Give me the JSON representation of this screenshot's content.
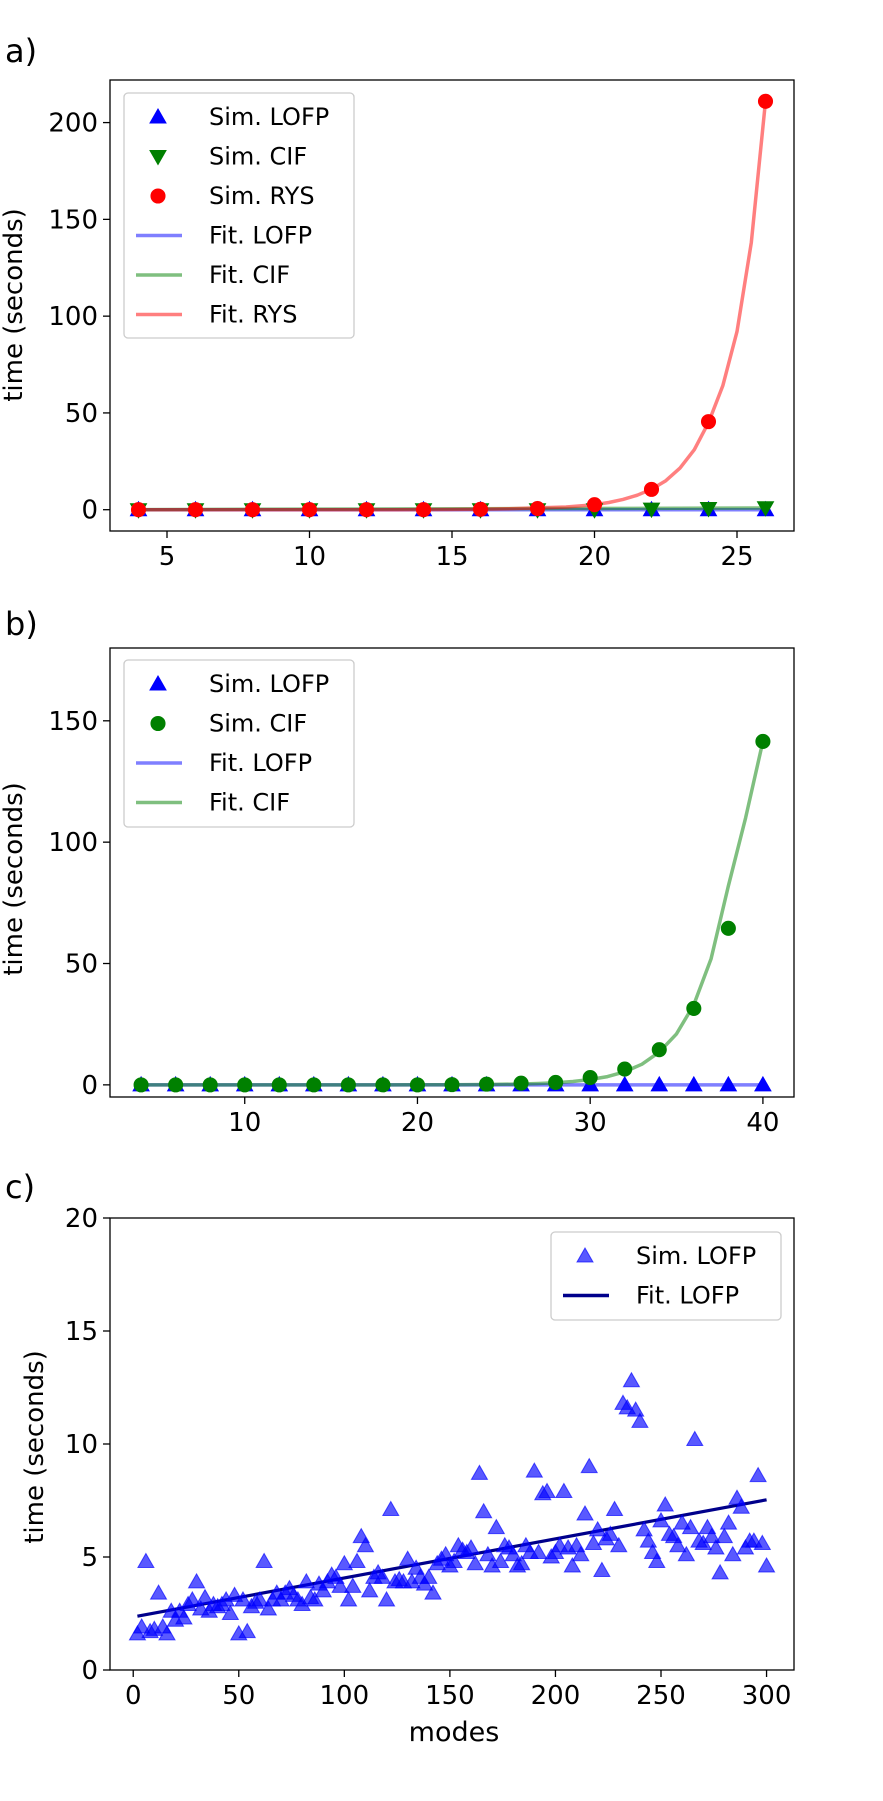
{
  "chart_data": [
    {
      "type": "scatter",
      "panel_label": "a)",
      "xlabel": "",
      "ylabel": "time (seconds)",
      "xlim": [
        3.0,
        27.0
      ],
      "ylim": [
        -11,
        222
      ],
      "xticks": [
        5,
        10,
        15,
        20,
        25
      ],
      "yticks": [
        0,
        50,
        100,
        150,
        200
      ],
      "legend_position": "top-left",
      "series": [
        {
          "name": "Sim. LOFP",
          "kind": "markers",
          "marker": "triangle-up",
          "color": "#0000ff",
          "x": [
            4,
            6,
            8,
            10,
            12,
            14,
            16,
            18,
            20,
            22,
            24,
            26
          ],
          "y": [
            0,
            0,
            0,
            0,
            0,
            0,
            0,
            0,
            0,
            0,
            0,
            0
          ]
        },
        {
          "name": "Sim. CIF",
          "kind": "markers",
          "marker": "triangle-down",
          "color": "#008000",
          "x": [
            4,
            6,
            8,
            10,
            12,
            14,
            16,
            18,
            20,
            22,
            24,
            26
          ],
          "y": [
            0,
            0,
            0,
            0,
            0,
            0,
            0,
            0,
            0,
            0.3,
            0.6,
            1.0
          ]
        },
        {
          "name": "Sim. RYS",
          "kind": "markers",
          "marker": "circle",
          "color": "#ff0000",
          "x": [
            4,
            6,
            8,
            10,
            12,
            14,
            16,
            18,
            20,
            22,
            24,
            26
          ],
          "y": [
            0,
            0,
            0,
            0,
            0,
            0,
            0.2,
            0.6,
            2.6,
            10.5,
            45.5,
            211
          ]
        },
        {
          "name": "Fit. LOFP",
          "kind": "line",
          "color": "#0000ff",
          "opacity": 0.5,
          "x": [
            4,
            26
          ],
          "y": [
            0,
            0
          ]
        },
        {
          "name": "Fit. CIF",
          "kind": "line",
          "color": "#008000",
          "opacity": 0.5,
          "x": [
            4,
            26
          ],
          "y": [
            0.05,
            0.9
          ]
        },
        {
          "name": "Fit. RYS",
          "kind": "line",
          "color": "#ff0000",
          "opacity": 0.5,
          "x": [
            4,
            5,
            6,
            7,
            8,
            9,
            10,
            11,
            12,
            13,
            14,
            15,
            16,
            17,
            18,
            19,
            20,
            20.5,
            21,
            21.5,
            22,
            22.5,
            23,
            23.5,
            24,
            24.5,
            25,
            25.5,
            26
          ],
          "y": [
            0,
            0,
            0,
            0,
            0,
            0,
            0,
            0,
            0,
            0.03,
            0.06,
            0.12,
            0.23,
            0.48,
            0.95,
            1.4,
            2.6,
            3.7,
            5.3,
            7.5,
            10.6,
            15.0,
            21.5,
            31.0,
            45.0,
            64.0,
            92.0,
            138,
            211
          ]
        }
      ]
    },
    {
      "type": "scatter",
      "panel_label": "b)",
      "xlabel": "",
      "ylabel": "time (seconds)",
      "xlim": [
        2.2,
        41.8
      ],
      "ylim": [
        -5,
        180
      ],
      "xticks": [
        10,
        20,
        30,
        40
      ],
      "yticks": [
        0,
        50,
        100,
        150
      ],
      "legend_position": "top-left",
      "series": [
        {
          "name": "Sim. LOFP",
          "kind": "markers",
          "marker": "triangle-up",
          "color": "#0000ff",
          "x": [
            4,
            6,
            8,
            10,
            12,
            14,
            16,
            18,
            20,
            22,
            24,
            26,
            28,
            30,
            32,
            34,
            36,
            38,
            40
          ],
          "y": [
            0,
            0,
            0,
            0,
            0,
            0,
            0,
            0,
            0,
            0,
            0,
            0,
            0,
            0,
            0,
            0,
            0,
            0,
            0
          ]
        },
        {
          "name": "Sim. CIF",
          "kind": "markers",
          "marker": "circle",
          "color": "#008000",
          "x": [
            4,
            6,
            8,
            10,
            12,
            14,
            16,
            18,
            20,
            22,
            24,
            26,
            28,
            30,
            32,
            34,
            36,
            38,
            40
          ],
          "y": [
            0,
            0,
            0,
            0,
            0,
            0,
            0,
            0,
            0,
            0.1,
            0.3,
            0.7,
            1.0,
            3.0,
            6.5,
            14.5,
            31.5,
            64.5,
            141.5
          ]
        },
        {
          "name": "Fit. LOFP",
          "kind": "line",
          "color": "#0000ff",
          "opacity": 0.5,
          "x": [
            4,
            40
          ],
          "y": [
            0,
            0
          ]
        },
        {
          "name": "Fit. CIF",
          "kind": "line",
          "color": "#008000",
          "opacity": 0.5,
          "x": [
            4,
            8,
            12,
            16,
            20,
            22,
            24,
            26,
            27,
            28,
            29,
            30,
            31,
            32,
            33,
            34,
            35,
            36,
            37,
            38,
            39,
            40
          ],
          "y": [
            0,
            0,
            0,
            0,
            0.03,
            0.07,
            0.15,
            0.35,
            0.55,
            0.9,
            1.4,
            2.2,
            3.4,
            5.4,
            8.5,
            13.5,
            21.0,
            33.0,
            52.0,
            82.0,
            110,
            141.5
          ]
        }
      ]
    },
    {
      "type": "scatter",
      "panel_label": "c)",
      "xlabel": "modes",
      "ylabel": "time (seconds)",
      "xlim": [
        -11,
        313
      ],
      "ylim": [
        0,
        20
      ],
      "xticks": [
        0,
        50,
        100,
        150,
        200,
        250,
        300
      ],
      "yticks": [
        0,
        5,
        10,
        15,
        20
      ],
      "legend_position": "top-right",
      "series": [
        {
          "name": "Sim. LOFP",
          "kind": "markers",
          "marker": "triangle-up",
          "color": "#0000ff",
          "opacity": 0.65,
          "x": [
            2,
            4,
            6,
            8,
            10,
            12,
            14,
            16,
            18,
            20,
            22,
            24,
            26,
            28,
            30,
            32,
            34,
            36,
            38,
            40,
            42,
            44,
            46,
            48,
            50,
            52,
            54,
            56,
            58,
            60,
            62,
            64,
            66,
            68,
            70,
            72,
            74,
            76,
            78,
            80,
            82,
            84,
            86,
            88,
            90,
            92,
            94,
            96,
            98,
            100,
            102,
            104,
            106,
            108,
            110,
            112,
            114,
            116,
            118,
            120,
            122,
            124,
            126,
            128,
            130,
            132,
            134,
            136,
            138,
            140,
            142,
            144,
            146,
            148,
            150,
            152,
            154,
            156,
            158,
            160,
            162,
            164,
            166,
            168,
            170,
            172,
            174,
            176,
            178,
            180,
            182,
            184,
            186,
            188,
            190,
            192,
            194,
            196,
            198,
            200,
            202,
            204,
            206,
            208,
            210,
            212,
            214,
            216,
            218,
            220,
            222,
            224,
            226,
            228,
            230,
            232,
            234,
            236,
            238,
            240,
            242,
            244,
            246,
            248,
            250,
            252,
            254,
            256,
            258,
            260,
            262,
            264,
            266,
            268,
            270,
            272,
            274,
            276,
            278,
            280,
            282,
            284,
            286,
            288,
            290,
            292,
            294,
            296,
            298,
            300
          ],
          "y": [
            1.6,
            1.9,
            4.8,
            1.7,
            1.8,
            3.4,
            1.9,
            1.6,
            2.6,
            2.2,
            2.6,
            2.3,
            2.9,
            3.1,
            3.9,
            2.7,
            3.2,
            2.6,
            2.9,
            2.8,
            2.9,
            3.1,
            2.5,
            3.3,
            1.6,
            3.1,
            1.7,
            2.8,
            3.0,
            3.1,
            4.8,
            2.7,
            3.1,
            3.4,
            3.1,
            3.4,
            3.6,
            3.3,
            3.1,
            2.9,
            3.9,
            3.2,
            3.1,
            3.8,
            3.5,
            3.9,
            4.2,
            4.1,
            3.7,
            4.7,
            3.1,
            3.7,
            4.8,
            5.9,
            5.5,
            3.5,
            4.1,
            4.3,
            4.1,
            3.1,
            7.1,
            3.9,
            4.0,
            3.9,
            4.9,
            3.9,
            4.5,
            4.1,
            3.8,
            4.1,
            3.4,
            4.7,
            4.9,
            5.1,
            4.6,
            4.8,
            5.5,
            5.3,
            5.2,
            5.4,
            4.7,
            8.7,
            7.0,
            5.1,
            4.6,
            6.3,
            4.8,
            5.5,
            5.4,
            5.1,
            4.6,
            4.7,
            5.5,
            5.2,
            8.8,
            5.2,
            7.8,
            7.9,
            5.0,
            5.2,
            5.5,
            7.9,
            5.4,
            4.6,
            5.5,
            5.1,
            6.9,
            9.0,
            5.6,
            6.2,
            4.4,
            5.8,
            6.0,
            7.1,
            5.5,
            11.8,
            11.6,
            12.8,
            11.5,
            11.0,
            6.2,
            5.7,
            5.2,
            4.8,
            6.6,
            7.3,
            6.0,
            5.9,
            5.5,
            6.5,
            5.1,
            6.3,
            10.2,
            5.7,
            5.6,
            6.3,
            5.9,
            5.4,
            4.3,
            5.9,
            6.5,
            5.1,
            7.6,
            7.2,
            5.4,
            5.7,
            5.7,
            8.6,
            5.6,
            4.6
          ]
        },
        {
          "name": "Fit. LOFP",
          "kind": "line",
          "color": "#00008b",
          "opacity": 1.0,
          "x": [
            2,
            300
          ],
          "y": [
            2.38,
            7.53
          ]
        }
      ]
    }
  ]
}
